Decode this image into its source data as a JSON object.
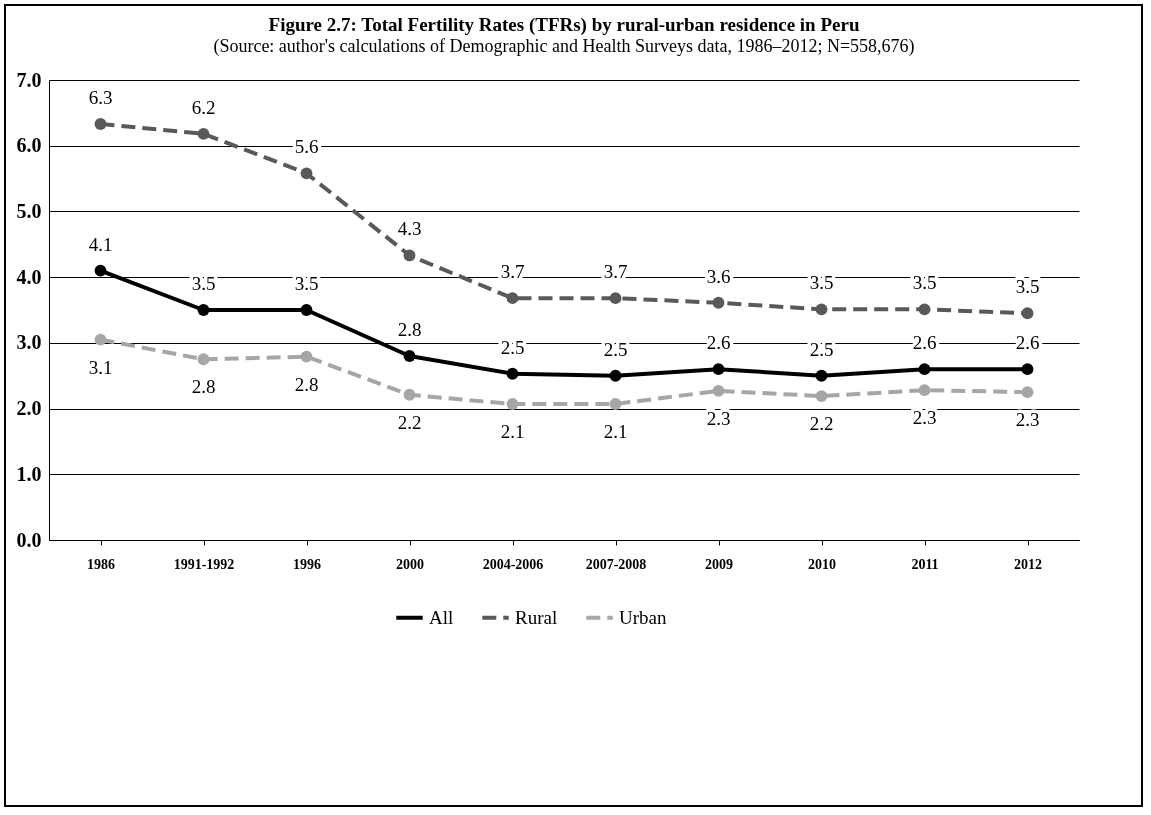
{
  "chart_data": {
    "type": "line",
    "title": "Figure 2.7: Total Fertility Rates (TFRs) by rural-urban residence in Peru",
    "subtitle": "(Source: author's calculations of Demographic and Health Surveys data, 1986–2012; N=558,676)",
    "categories": [
      "1986",
      "1991-1992",
      "1996",
      "2000",
      "2004-2006",
      "2007-2008",
      "2009",
      "2010",
      "2011",
      "2012"
    ],
    "series": [
      {
        "name": "All",
        "color": "#000000",
        "line_style": "solid",
        "values": [
          4.1,
          3.5,
          3.5,
          2.8,
          2.53,
          2.5,
          2.6,
          2.5,
          2.6,
          2.6
        ],
        "value_labels": [
          "4.1",
          "3.5",
          "3.5",
          "2.8",
          "2.5",
          "2.5",
          "2.6",
          "2.5",
          "2.6",
          "2.6"
        ]
      },
      {
        "name": "Rural",
        "color": "#595959",
        "line_style": "dashed",
        "values": [
          6.33,
          6.18,
          5.58,
          4.33,
          3.68,
          3.68,
          3.61,
          3.51,
          3.51,
          3.45
        ],
        "value_labels": [
          "6.3",
          "6.2",
          "5.6",
          "4.3",
          "3.7",
          "3.7",
          "3.6",
          "3.5",
          "3.5",
          "3.5"
        ]
      },
      {
        "name": "Urban",
        "color": "#a6a6a6",
        "line_style": "dashed",
        "values": [
          3.05,
          2.75,
          2.79,
          2.21,
          2.07,
          2.07,
          2.27,
          2.19,
          2.28,
          2.25
        ],
        "value_labels": [
          "3.1",
          "2.8",
          "2.8",
          "2.2",
          "2.1",
          "2.1",
          "2.3",
          "2.2",
          "2.3",
          "2.3"
        ]
      }
    ],
    "ylim": [
      0,
      7
    ],
    "yticks": [
      {
        "value": 0,
        "label": "0.0"
      },
      {
        "value": 1,
        "label": "1.0"
      },
      {
        "value": 2,
        "label": "2.0"
      },
      {
        "value": 3,
        "label": "3.0"
      },
      {
        "value": 4,
        "label": "4.0"
      },
      {
        "value": 5,
        "label": "5.0"
      },
      {
        "value": 6,
        "label": "6.0"
      },
      {
        "value": 7,
        "label": "7.0"
      }
    ],
    "grid": "y",
    "legend": "bottom",
    "marker": "circle"
  }
}
